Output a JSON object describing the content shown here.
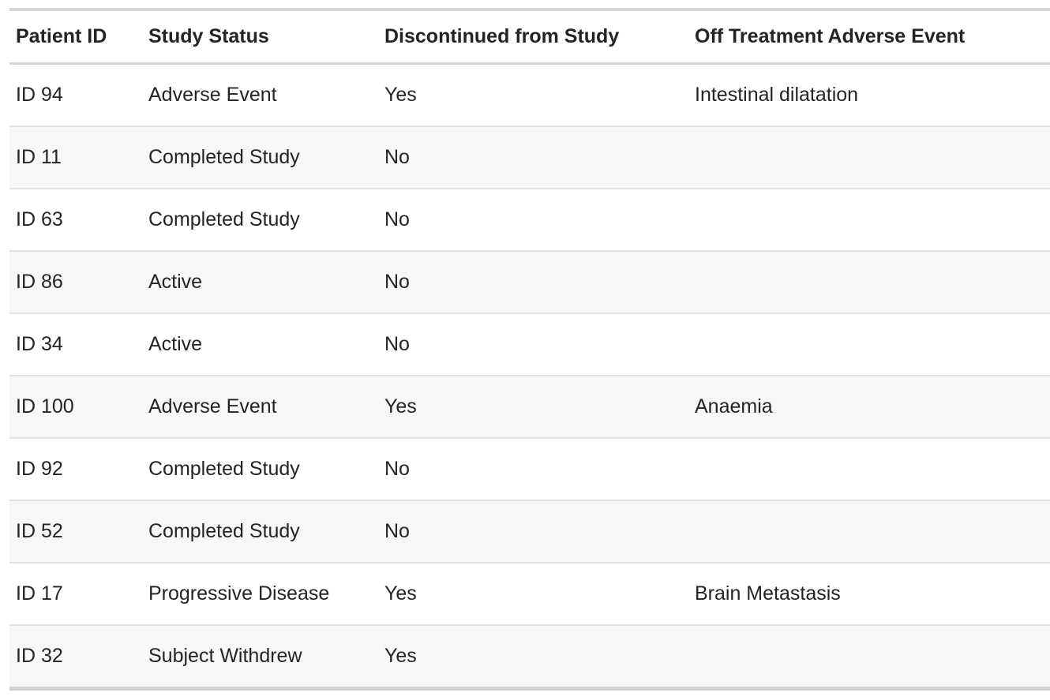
{
  "table": {
    "columns": [
      {
        "label": "Patient ID"
      },
      {
        "label": "Study Status"
      },
      {
        "label": "Discontinued from Study"
      },
      {
        "label": "Off Treatment Adverse Event"
      }
    ],
    "rows": [
      {
        "patient_id": "ID 94",
        "study_status": "Adverse Event",
        "discontinued": "Yes",
        "off_treatment_adverse_event": "Intestinal dilatation"
      },
      {
        "patient_id": "ID 11",
        "study_status": "Completed Study",
        "discontinued": "No",
        "off_treatment_adverse_event": ""
      },
      {
        "patient_id": "ID 63",
        "study_status": "Completed Study",
        "discontinued": "No",
        "off_treatment_adverse_event": ""
      },
      {
        "patient_id": "ID 86",
        "study_status": "Active",
        "discontinued": "No",
        "off_treatment_adverse_event": ""
      },
      {
        "patient_id": "ID 34",
        "study_status": "Active",
        "discontinued": "No",
        "off_treatment_adverse_event": ""
      },
      {
        "patient_id": "ID 100",
        "study_status": "Adverse Event",
        "discontinued": "Yes",
        "off_treatment_adverse_event": "Anaemia"
      },
      {
        "patient_id": "ID 92",
        "study_status": "Completed Study",
        "discontinued": "No",
        "off_treatment_adverse_event": ""
      },
      {
        "patient_id": "ID 52",
        "study_status": "Completed Study",
        "discontinued": "No",
        "off_treatment_adverse_event": ""
      },
      {
        "patient_id": "ID 17",
        "study_status": "Progressive Disease",
        "discontinued": "Yes",
        "off_treatment_adverse_event": "Brain Metastasis"
      },
      {
        "patient_id": "ID 32",
        "study_status": "Subject Withdrew",
        "discontinued": "Yes",
        "off_treatment_adverse_event": ""
      }
    ],
    "colors": {
      "text": "#252423",
      "row_stripe": "#f7f7f7",
      "border_major": "#d6d6d6",
      "border_row_separator": "#e2e2e2"
    }
  }
}
